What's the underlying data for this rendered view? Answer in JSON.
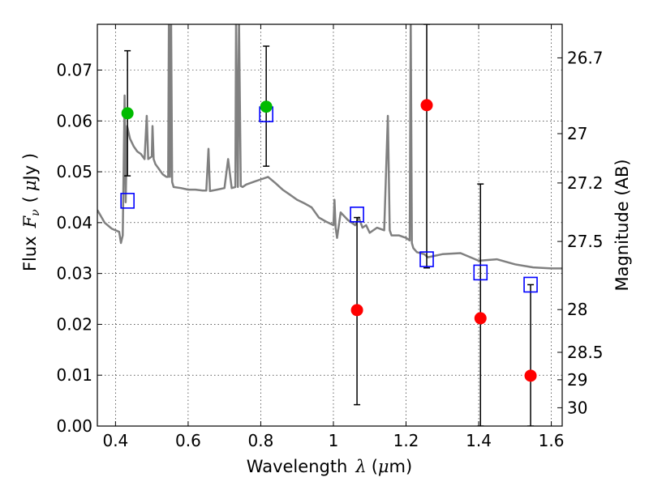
{
  "chart_data": {
    "type": "scatter",
    "xlabel_prefix": "Wavelength",
    "xlabel_symbol": "λ",
    "xlabel_unit_open": "(",
    "xlabel_unit_mu": "μ",
    "xlabel_unit_close": "m)",
    "ylabel_prefix": "Flux",
    "ylabel_symbol": "F",
    "ylabel_sub": "ν",
    "ylabel_unit_open": "(",
    "ylabel_unit_mu": "μ",
    "ylabel_unit_close": "Jy )",
    "y2label": "Magnitude (AB)",
    "xlim": [
      0.35,
      1.63
    ],
    "ylim": [
      0.0,
      0.079
    ],
    "grid": true,
    "x_ticks": [
      {
        "value": 0.4,
        "label": "0.4"
      },
      {
        "value": 0.6,
        "label": "0.6"
      },
      {
        "value": 0.8,
        "label": "0.8"
      },
      {
        "value": 1.0,
        "label": "1"
      },
      {
        "value": 1.2,
        "label": "1.2"
      },
      {
        "value": 1.4,
        "label": "1.4"
      },
      {
        "value": 1.6,
        "label": "1.6"
      }
    ],
    "y_ticks": [
      {
        "value": 0.0,
        "label": "0.00"
      },
      {
        "value": 0.01,
        "label": "0.01"
      },
      {
        "value": 0.02,
        "label": "0.02"
      },
      {
        "value": 0.03,
        "label": "0.03"
      },
      {
        "value": 0.04,
        "label": "0.04"
      },
      {
        "value": 0.05,
        "label": "0.05"
      },
      {
        "value": 0.06,
        "label": "0.06"
      },
      {
        "value": 0.07,
        "label": "0.07"
      }
    ],
    "y2_ticks": [
      {
        "flux": 0.0724,
        "label": "26.7"
      },
      {
        "flux": 0.0575,
        "label": "27"
      },
      {
        "flux": 0.0478,
        "label": "27.2"
      },
      {
        "flux": 0.0363,
        "label": "27.5"
      },
      {
        "flux": 0.0229,
        "label": "28"
      },
      {
        "flux": 0.0145,
        "label": "28.5"
      },
      {
        "flux": 0.0091,
        "label": "29"
      },
      {
        "flux": 0.0036,
        "label": "30"
      }
    ],
    "series": [
      {
        "kind": "model_spectrum",
        "color": "#808080",
        "x": [
          0.35,
          0.37,
          0.39,
          0.41,
          0.415,
          0.42,
          0.425,
          0.428,
          0.432,
          0.44,
          0.45,
          0.46,
          0.47,
          0.48,
          0.486,
          0.49,
          0.5,
          0.502,
          0.505,
          0.51,
          0.52,
          0.53,
          0.54,
          0.545,
          0.547,
          0.55,
          0.553,
          0.556,
          0.56,
          0.58,
          0.6,
          0.62,
          0.64,
          0.65,
          0.656,
          0.66,
          0.68,
          0.7,
          0.71,
          0.72,
          0.73,
          0.732,
          0.737,
          0.74,
          0.745,
          0.75,
          0.76,
          0.78,
          0.8,
          0.82,
          0.84,
          0.86,
          0.88,
          0.9,
          0.92,
          0.94,
          0.95,
          0.96,
          0.98,
          1.0,
          1.003,
          1.006,
          1.01,
          1.02,
          1.04,
          1.06,
          1.07,
          1.08,
          1.09,
          1.1,
          1.12,
          1.14,
          1.15,
          1.155,
          1.16,
          1.17,
          1.18,
          1.2,
          1.21,
          1.213,
          1.216,
          1.22,
          1.23,
          1.25,
          1.26,
          1.3,
          1.35,
          1.4,
          1.45,
          1.5,
          1.55,
          1.6,
          1.63
        ],
        "y": [
          0.0425,
          0.04,
          0.0388,
          0.0382,
          0.036,
          0.0375,
          0.065,
          0.044,
          0.059,
          0.0565,
          0.055,
          0.054,
          0.0535,
          0.0525,
          0.061,
          0.0525,
          0.053,
          0.059,
          0.0525,
          0.0515,
          0.0505,
          0.0495,
          0.049,
          0.049,
          0.08,
          0.049,
          0.08,
          0.048,
          0.047,
          0.0468,
          0.0465,
          0.0465,
          0.0463,
          0.0463,
          0.0545,
          0.0462,
          0.0465,
          0.0468,
          0.0525,
          0.0468,
          0.047,
          0.08,
          0.047,
          0.08,
          0.0472,
          0.047,
          0.0475,
          0.048,
          0.0485,
          0.049,
          0.0478,
          0.0465,
          0.0455,
          0.0445,
          0.0438,
          0.043,
          0.042,
          0.041,
          0.0402,
          0.0395,
          0.0445,
          0.039,
          0.037,
          0.042,
          0.0405,
          0.0395,
          0.041,
          0.039,
          0.0395,
          0.038,
          0.039,
          0.0385,
          0.061,
          0.0385,
          0.0375,
          0.0375,
          0.0375,
          0.037,
          0.0365,
          0.08,
          0.036,
          0.035,
          0.0342,
          0.0338,
          0.0332,
          0.0338,
          0.034,
          0.0325,
          0.0328,
          0.0318,
          0.0312,
          0.031,
          0.031
        ]
      },
      {
        "kind": "model_fluxes",
        "marker": "open square",
        "color": "#0000ff",
        "x": [
          0.433,
          0.815,
          1.065,
          1.257,
          1.405,
          1.543
        ],
        "y": [
          0.0443,
          0.0613,
          0.0416,
          0.0328,
          0.0302,
          0.0278
        ]
      },
      {
        "kind": "detections",
        "marker": "filled circle",
        "color": "#00bb00",
        "x": [
          0.433,
          0.815
        ],
        "y": [
          0.0615,
          0.0628
        ],
        "yerr_low": [
          0.0492,
          0.0511
        ],
        "yerr_high": [
          0.0738,
          0.0747
        ]
      },
      {
        "kind": "non_detections",
        "marker": "filled circle",
        "color": "#ff0000",
        "x": [
          1.065,
          1.257,
          1.405,
          1.543
        ],
        "y": [
          0.0228,
          0.0631,
          0.0212,
          0.0099
        ],
        "yerr_low": [
          0.0042,
          0.0311,
          0.0,
          0.0
        ],
        "yerr_high": [
          0.041,
          0.079,
          0.0476,
          0.0278
        ]
      }
    ]
  }
}
